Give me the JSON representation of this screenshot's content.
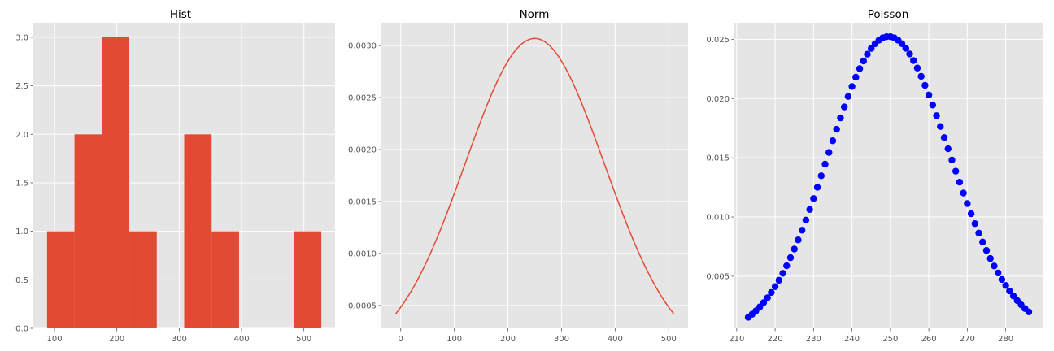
{
  "colors": {
    "panel_background": "#e5e5e5",
    "grid": "#ffffff",
    "hist_fill": "#e24a33",
    "norm_line": "#e24a33",
    "poisson_marker": "#0000ff",
    "tick_text": "#555555"
  },
  "chart_data": [
    {
      "type": "bar",
      "subtype": "histogram",
      "title": "Hist",
      "xlabel": "",
      "ylabel": "",
      "xlim": [
        66,
        550
      ],
      "ylim": [
        0,
        3.15
      ],
      "grid": true,
      "bins": [
        {
          "left": 88,
          "right": 132,
          "count": 1
        },
        {
          "left": 132,
          "right": 176,
          "count": 2
        },
        {
          "left": 176,
          "right": 220,
          "count": 3
        },
        {
          "left": 220,
          "right": 264,
          "count": 1
        },
        {
          "left": 264,
          "right": 308,
          "count": 0
        },
        {
          "left": 308,
          "right": 352,
          "count": 2
        },
        {
          "left": 352,
          "right": 396,
          "count": 1
        },
        {
          "left": 396,
          "right": 440,
          "count": 0
        },
        {
          "left": 440,
          "right": 484,
          "count": 0
        },
        {
          "left": 484,
          "right": 528,
          "count": 1
        }
      ],
      "xticks": [
        100,
        200,
        300,
        400,
        500
      ],
      "xtick_labels": [
        "100",
        "200",
        "300",
        "400",
        "500"
      ],
      "yticks": [
        0,
        0.5,
        1,
        1.5,
        2,
        2.5,
        3
      ],
      "ytick_labels": [
        "0.0",
        "0.5",
        "1.0",
        "1.5",
        "2.0",
        "2.5",
        "3.0"
      ]
    },
    {
      "type": "line",
      "title": "Norm",
      "xlabel": "",
      "ylabel": "",
      "distribution": {
        "name": "normal",
        "mean": 250,
        "sd": 130
      },
      "x_range": [
        -10,
        510
      ],
      "xlim": [
        -36,
        536
      ],
      "ylim": [
        0.00028,
        0.00322
      ],
      "grid": true,
      "xticks": [
        0,
        100,
        200,
        300,
        400,
        500
      ],
      "xtick_labels": [
        "0",
        "100",
        "200",
        "300",
        "400",
        "500"
      ],
      "yticks": [
        0.0005,
        0.001,
        0.0015,
        0.002,
        0.0025,
        0.003
      ],
      "ytick_labels": [
        "0.0005",
        "0.0010",
        "0.0015",
        "0.0020",
        "0.0025",
        "0.0030"
      ]
    },
    {
      "type": "scatter",
      "title": "Poisson",
      "xlabel": "",
      "ylabel": "",
      "distribution": {
        "name": "poisson",
        "mu": 250
      },
      "x_range": [
        213,
        286
      ],
      "xlim": [
        209.4,
        289.6
      ],
      "ylim": [
        0.0006,
        0.0264
      ],
      "grid": true,
      "xticks": [
        210,
        220,
        230,
        240,
        250,
        260,
        270,
        280
      ],
      "xtick_labels": [
        "210",
        "220",
        "230",
        "240",
        "250",
        "260",
        "270",
        "280"
      ],
      "yticks": [
        0.005,
        0.01,
        0.015,
        0.02,
        0.025
      ],
      "ytick_labels": [
        "0.005",
        "0.010",
        "0.015",
        "0.020",
        "0.025"
      ]
    }
  ]
}
